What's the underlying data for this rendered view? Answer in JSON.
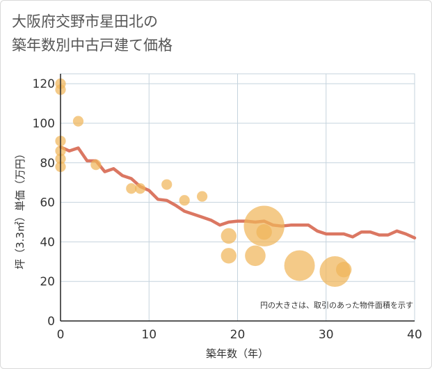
{
  "title_line1": "大阪府交野市星田北の",
  "title_line2": "築年数別中古戸建て価格",
  "chart_data": {
    "type": "scatter",
    "title": "大阪府交野市星田北の築年数別中古戸建て価格",
    "xlabel": "築年数（年）",
    "ylabel": "坪（3.3㎡）単価（万円）",
    "xlim": [
      0,
      40
    ],
    "ylim": [
      0,
      125
    ],
    "xticks": [
      0,
      10,
      20,
      30,
      40
    ],
    "yticks": [
      0,
      20,
      40,
      60,
      80,
      100,
      120
    ],
    "grid": true,
    "note": "円の大きさは、取引のあった物件面積を示す",
    "colors": {
      "bubble": "#f0b65a",
      "line": "#d9705a",
      "grid": "#c5d3dd"
    },
    "scatter": [
      {
        "x": 0,
        "y": 120,
        "size": 1
      },
      {
        "x": 0,
        "y": 117,
        "size": 1
      },
      {
        "x": 0,
        "y": 91,
        "size": 1
      },
      {
        "x": 0,
        "y": 86,
        "size": 1
      },
      {
        "x": 0,
        "y": 82,
        "size": 1
      },
      {
        "x": 0,
        "y": 78,
        "size": 1
      },
      {
        "x": 2,
        "y": 101,
        "size": 1
      },
      {
        "x": 4,
        "y": 79,
        "size": 1
      },
      {
        "x": 8,
        "y": 67,
        "size": 1
      },
      {
        "x": 9,
        "y": 67,
        "size": 1
      },
      {
        "x": 12,
        "y": 69,
        "size": 1
      },
      {
        "x": 14,
        "y": 61,
        "size": 1
      },
      {
        "x": 16,
        "y": 63,
        "size": 1
      },
      {
        "x": 19,
        "y": 43,
        "size": 2
      },
      {
        "x": 19,
        "y": 33,
        "size": 2
      },
      {
        "x": 22,
        "y": 33,
        "size": 3
      },
      {
        "x": 23,
        "y": 48,
        "size": 7
      },
      {
        "x": 23,
        "y": 45,
        "size": 2
      },
      {
        "x": 27,
        "y": 28,
        "size": 5
      },
      {
        "x": 31,
        "y": 25,
        "size": 5
      },
      {
        "x": 32,
        "y": 26,
        "size": 2
      }
    ],
    "trend": {
      "x": [
        0,
        1,
        2,
        3,
        4,
        5,
        6,
        7,
        8,
        9,
        10,
        11,
        12,
        13,
        14,
        15,
        16,
        17,
        18,
        19,
        20,
        21,
        22,
        23,
        24,
        25,
        26,
        27,
        28,
        29,
        30,
        31,
        32,
        33,
        34,
        35,
        36,
        37,
        38,
        39,
        40
      ],
      "y": [
        88,
        86,
        87.5,
        81,
        81,
        75.5,
        77,
        73.5,
        72,
        68,
        66,
        61.5,
        61,
        58.5,
        55.5,
        54,
        52.5,
        51,
        48.5,
        50,
        50.5,
        50.5,
        50,
        50.5,
        48.5,
        48,
        48.5,
        48.5,
        48.5,
        45.5,
        44,
        44,
        44,
        42.5,
        45,
        45,
        43.5,
        43.5,
        45.5,
        44,
        42
      ]
    }
  }
}
